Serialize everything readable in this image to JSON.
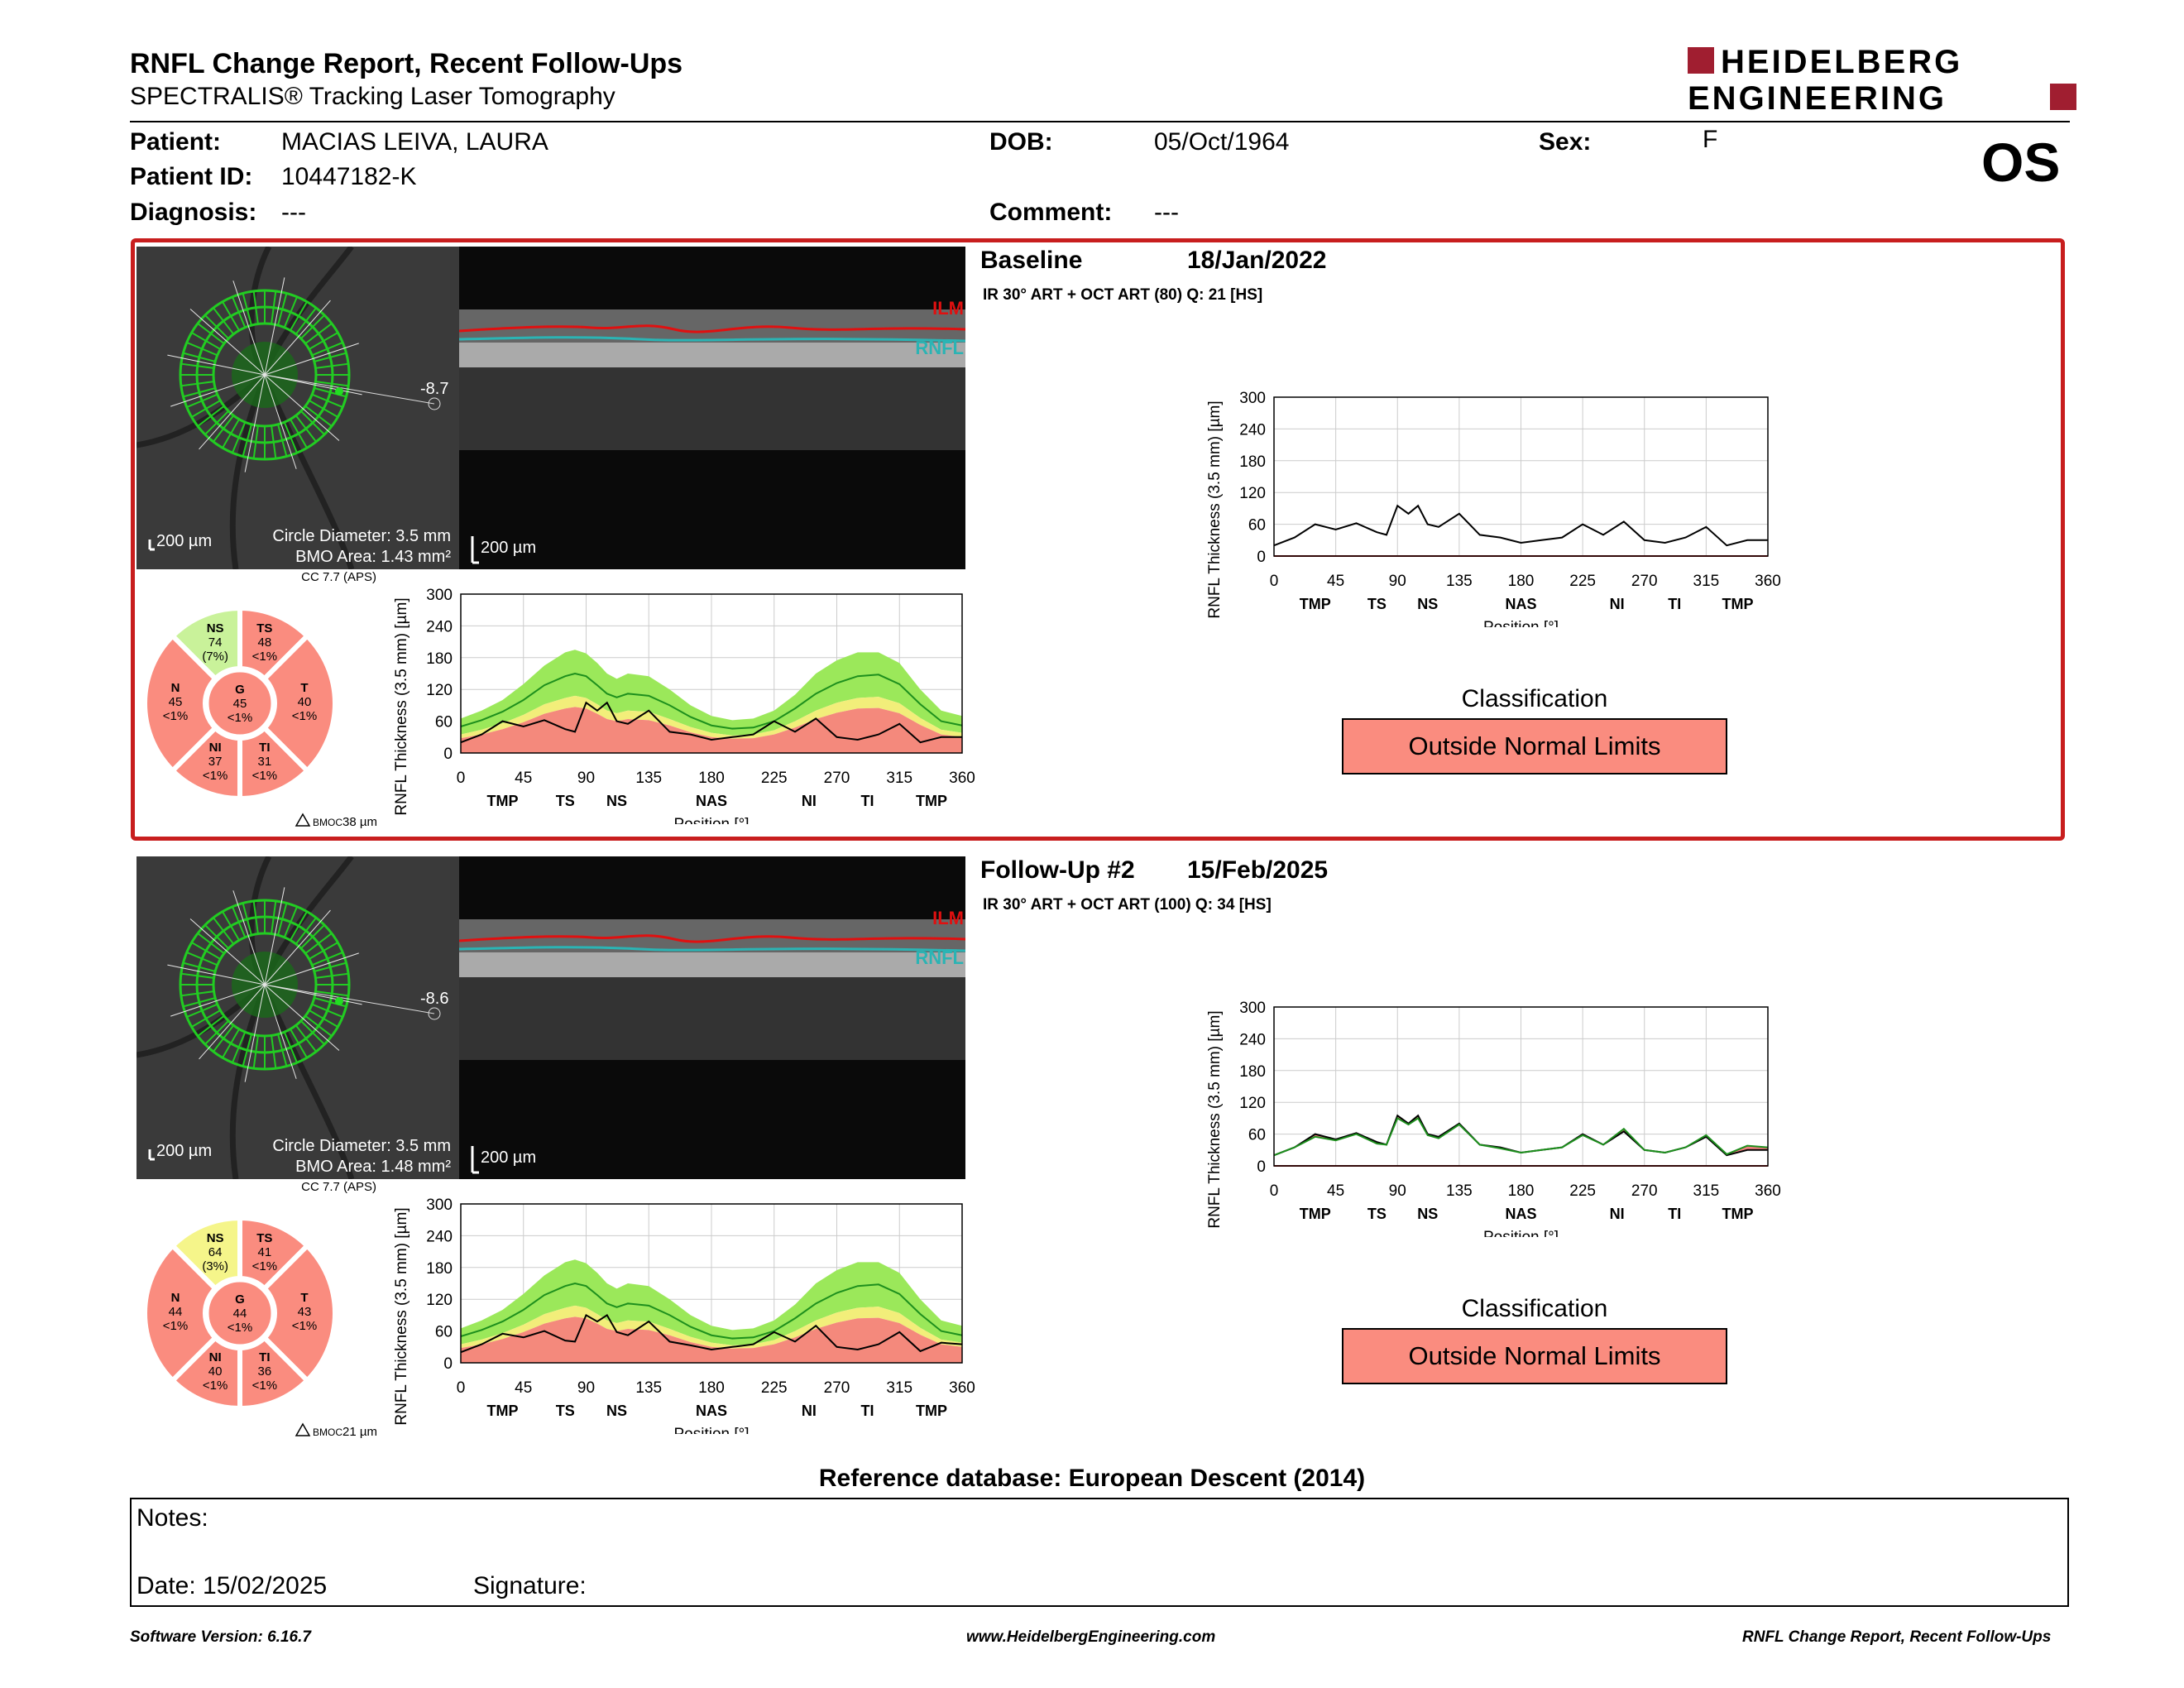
{
  "report": {
    "title": "RNFL Change Report, Recent Follow-Ups",
    "subtitle": "SPECTRALIS® Tracking Laser Tomography",
    "logo_line1": "HEIDELBERG",
    "logo_line2": "ENGINEERING",
    "eye": "OS"
  },
  "patient": {
    "patient_label": "Patient:",
    "patient_value": "MACIAS LEIVA, LAURA",
    "id_label": "Patient ID:",
    "id_value": "10447182-K",
    "diag_label": "Diagnosis:",
    "diag_value": "---",
    "dob_label": "DOB:",
    "dob_value": "05/Oct/1964",
    "comment_label": "Comment:",
    "comment_value": "---",
    "sex_label": "Sex:",
    "sex_value": "F"
  },
  "common": {
    "scale_bar": "200 µm",
    "circle_diameter": "Circle Diameter: 3.5 mm",
    "cc": "CC 7.7 (APS)",
    "ilm": "ILM",
    "rnfl": "RNFL",
    "classification_label": "Classification",
    "y_axis_label": "RNFL Thickness (3.5 mm) [µm]",
    "x_axis_label": "Position [°]",
    "y_ticks": [
      "300",
      "240",
      "180",
      "120",
      "60",
      "0"
    ],
    "x_ticks": [
      "0",
      "45",
      "90",
      "135",
      "180",
      "225",
      "270",
      "315",
      "360"
    ],
    "sector_ticks": [
      "TMP",
      "TS",
      "NS",
      "NAS",
      "NI",
      "TI",
      "TMP"
    ]
  },
  "visits": [
    {
      "name": "Baseline",
      "date": "18/Jan/2022",
      "scan_info": "IR 30° ART + OCT ART (80) Q: 21 [HS]",
      "angle": "-8.7",
      "bmo_area": "BMO Area: 1.43 mm²",
      "bmoc": "38 µm",
      "classification": "Outside Normal Limits",
      "sectors": {
        "NS": {
          "label": "NS",
          "value": "74",
          "pct": "(7%)",
          "color": "#c9f29a"
        },
        "TS": {
          "label": "TS",
          "value": "48",
          "pct": "<1%",
          "color": "#fa8c7f"
        },
        "T": {
          "label": "T",
          "value": "40",
          "pct": "<1%",
          "color": "#fa8c7f"
        },
        "TI": {
          "label": "TI",
          "value": "31",
          "pct": "<1%",
          "color": "#fa8c7f"
        },
        "NI": {
          "label": "NI",
          "value": "37",
          "pct": "<1%",
          "color": "#fa8c7f"
        },
        "N": {
          "label": "N",
          "value": "45",
          "pct": "<1%",
          "color": "#fa8c7f"
        },
        "G": {
          "label": "G",
          "value": "45",
          "pct": "<1%",
          "color": "#fa8c7f"
        }
      }
    },
    {
      "name": "Follow-Up #2",
      "date": "15/Feb/2025",
      "scan_info": "IR 30° ART + OCT ART (100) Q: 34 [HS]",
      "angle": "-8.6",
      "bmo_area": "BMO Area: 1.48 mm²",
      "bmoc": "21 µm",
      "classification": "Outside Normal Limits",
      "sectors": {
        "NS": {
          "label": "NS",
          "value": "64",
          "pct": "(3%)",
          "color": "#f5f58a"
        },
        "TS": {
          "label": "TS",
          "value": "41",
          "pct": "<1%",
          "color": "#fa8c7f"
        },
        "T": {
          "label": "T",
          "value": "43",
          "pct": "<1%",
          "color": "#fa8c7f"
        },
        "TI": {
          "label": "TI",
          "value": "36",
          "pct": "<1%",
          "color": "#fa8c7f"
        },
        "NI": {
          "label": "NI",
          "value": "40",
          "pct": "<1%",
          "color": "#fa8c7f"
        },
        "N": {
          "label": "N",
          "value": "44",
          "pct": "<1%",
          "color": "#fa8c7f"
        },
        "G": {
          "label": "G",
          "value": "44",
          "pct": "<1%",
          "color": "#fa8c7f"
        }
      }
    }
  ],
  "chart_data": [
    {
      "type": "line",
      "xlabel": "Position [°]",
      "ylabel": "RNFL Thickness (3.5 mm) [µm]",
      "xlim": [
        0,
        360
      ],
      "ylim": [
        0,
        300
      ],
      "x": [
        0,
        15,
        30,
        45,
        60,
        75,
        82,
        90,
        98,
        105,
        112,
        120,
        135,
        150,
        165,
        180,
        195,
        210,
        225,
        240,
        255,
        270,
        285,
        300,
        315,
        330,
        345,
        360
      ],
      "series": [
        {
          "name": "Normal (green band) upper",
          "values": [
            65,
            80,
            100,
            130,
            165,
            190,
            195,
            188,
            170,
            150,
            140,
            150,
            145,
            120,
            90,
            70,
            62,
            65,
            80,
            110,
            150,
            175,
            190,
            190,
            170,
            120,
            80,
            70
          ]
        },
        {
          "name": "Normal median",
          "values": [
            50,
            62,
            78,
            100,
            128,
            145,
            150,
            145,
            128,
            112,
            105,
            112,
            108,
            90,
            68,
            52,
            46,
            48,
            60,
            84,
            112,
            132,
            145,
            148,
            130,
            92,
            60,
            52
          ]
        },
        {
          "name": "Borderline upper",
          "values": [
            35,
            44,
            56,
            72,
            92,
            104,
            108,
            104,
            92,
            80,
            75,
            80,
            78,
            64,
            49,
            38,
            33,
            35,
            43,
            60,
            80,
            95,
            104,
            106,
            94,
            66,
            44,
            38
          ]
        },
        {
          "name": "Outside normal upper",
          "values": [
            28,
            35,
            45,
            58,
            74,
            84,
            87,
            84,
            74,
            64,
            60,
            64,
            62,
            52,
            39,
            30,
            27,
            28,
            35,
            48,
            64,
            76,
            84,
            85,
            75,
            53,
            35,
            30
          ]
        },
        {
          "name": "Baseline",
          "values": [
            20,
            35,
            60,
            50,
            62,
            45,
            40,
            95,
            80,
            95,
            60,
            55,
            80,
            40,
            35,
            25,
            30,
            35,
            60,
            40,
            65,
            30,
            25,
            35,
            55,
            20,
            30,
            30
          ]
        },
        {
          "name": "Follow-Up #2",
          "values": [
            20,
            35,
            55,
            48,
            60,
            42,
            40,
            90,
            78,
            90,
            58,
            52,
            78,
            40,
            33,
            25,
            30,
            35,
            58,
            40,
            70,
            30,
            25,
            35,
            58,
            22,
            38,
            35
          ]
        }
      ]
    }
  ]
}
